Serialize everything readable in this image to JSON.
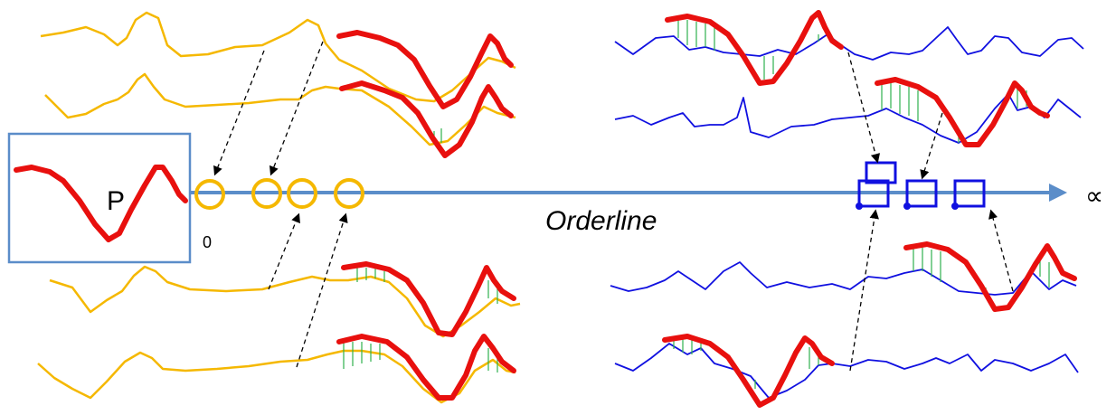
{
  "labels": {
    "query": "P",
    "axis_title": "Orderline",
    "origin": "0",
    "infinity": "∝"
  },
  "colors": {
    "near_series": "#F5B800",
    "far_series": "#1010E0",
    "query_pattern": "#E8100E",
    "orderline": "#5B8DC9",
    "match_lines": "#2FB14E",
    "query_box": "#5B8DC9"
  }
}
